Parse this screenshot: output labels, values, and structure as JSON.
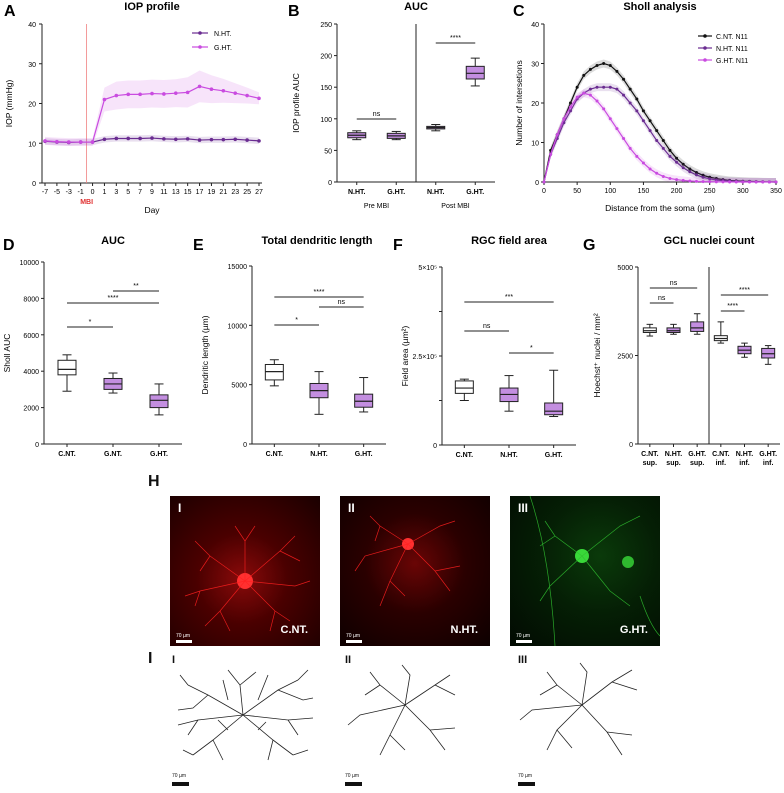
{
  "panel_letters": {
    "A": "A",
    "B": "B",
    "C": "C",
    "D": "D",
    "E": "E",
    "F": "F",
    "G": "G",
    "H": "H",
    "I": "I"
  },
  "chart_data": [
    {
      "id": "A",
      "type": "line",
      "title": "IOP profile",
      "xlabel": "Day",
      "ylabel": "IOP (mmHg)",
      "x_ticks": [
        "-7",
        "-5",
        "-3",
        "-1",
        "0",
        "1",
        "3",
        "5",
        "7",
        "9",
        "11",
        "13",
        "15",
        "17",
        "19",
        "21",
        "23",
        "25",
        "27"
      ],
      "ylim": [
        0,
        40
      ],
      "y_ticks": [
        0,
        10,
        20,
        30,
        40
      ],
      "event_label": "MBI",
      "event_at": "0",
      "series": [
        {
          "name": "N.HT.",
          "color": "#6a2c91",
          "values": [
            10.5,
            10.3,
            10.2,
            10.3,
            10.3,
            11.0,
            11.2,
            11.2,
            11.2,
            11.3,
            11.1,
            11.0,
            11.1,
            10.8,
            10.9,
            10.9,
            11.0,
            10.8,
            10.6
          ],
          "band": [
            0.8,
            0.8,
            0.8,
            0.8,
            0.8,
            0.8,
            0.8,
            0.8,
            0.8,
            0.8,
            0.8,
            0.8,
            0.8,
            0.8,
            0.8,
            0.8,
            0.8,
            0.8,
            0.8
          ]
        },
        {
          "name": "G.HT.",
          "color": "#c94be0",
          "values": [
            10.6,
            10.4,
            10.3,
            10.3,
            10.3,
            21.0,
            22.0,
            22.3,
            22.3,
            22.5,
            22.4,
            22.6,
            22.8,
            24.3,
            23.6,
            23.2,
            22.6,
            22.0,
            21.3
          ],
          "band": [
            1.0,
            1.0,
            1.0,
            1.0,
            1.0,
            3.0,
            3.5,
            3.5,
            3.5,
            3.5,
            3.5,
            3.5,
            3.8,
            4.0,
            3.5,
            3.0,
            2.5,
            2.0,
            1.5
          ]
        }
      ],
      "legend_position": "top-right"
    },
    {
      "id": "B",
      "type": "box",
      "title": "AUC",
      "ylabel": "IOP profile AUC",
      "ylim": [
        0,
        250
      ],
      "y_ticks": [
        0,
        50,
        100,
        150,
        200,
        250
      ],
      "groups": [
        {
          "label": "N.HT.",
          "min": 67,
          "q1": 70,
          "median": 74,
          "q3": 78,
          "max": 81,
          "fill": "#c38ee0"
        },
        {
          "label": "G.HT.",
          "min": 67,
          "q1": 69,
          "median": 73,
          "q3": 77,
          "max": 80,
          "fill": "#c38ee0"
        },
        {
          "label": "N.HT.",
          "min": 81,
          "q1": 84,
          "median": 86,
          "q3": 88,
          "max": 91,
          "fill": "#c38ee0"
        },
        {
          "label": "G.HT.",
          "min": 152,
          "q1": 163,
          "median": 172,
          "q3": 183,
          "max": 196,
          "fill": "#c38ee0"
        }
      ],
      "sections": [
        "Pre MBI",
        "Post MBI"
      ],
      "significance": [
        {
          "text": "ns"
        },
        {
          "text": "****"
        }
      ]
    },
    {
      "id": "C",
      "type": "line",
      "title": "Sholl analysis",
      "xlabel": "Distance from the soma (µm)",
      "ylabel": "Number of intersetions",
      "xlim": [
        0,
        350
      ],
      "x_ticks": [
        0,
        50,
        100,
        150,
        200,
        250,
        300,
        350
      ],
      "ylim": [
        0,
        40
      ],
      "y_ticks": [
        0,
        10,
        20,
        30,
        40
      ],
      "x": [
        0,
        10,
        20,
        30,
        40,
        50,
        60,
        70,
        80,
        90,
        100,
        110,
        120,
        130,
        140,
        150,
        160,
        170,
        180,
        190,
        200,
        210,
        220,
        230,
        240,
        250,
        260,
        270,
        280,
        290,
        300,
        310,
        320,
        330,
        340,
        350
      ],
      "series": [
        {
          "name": "C.NT. N11",
          "color": "#111111",
          "values": [
            0,
            8,
            12,
            16,
            20,
            24,
            27,
            28.5,
            29.5,
            30,
            29.5,
            28,
            26,
            23.5,
            21,
            18,
            15.5,
            13,
            10.5,
            8,
            6,
            4.5,
            3.3,
            2.4,
            1.7,
            1.2,
            0.9,
            0.6,
            0.4,
            0.3,
            0.2,
            0.15,
            0.1,
            0.05,
            0.02,
            0
          ]
        },
        {
          "name": "N.HT. N11",
          "color": "#6a2c91",
          "values": [
            0,
            7,
            11,
            15,
            18,
            21,
            22.5,
            23.5,
            24,
            24,
            24,
            23.5,
            22,
            20,
            18,
            15.5,
            13,
            10.5,
            8.5,
            6.5,
            5,
            3.6,
            2.6,
            1.8,
            1.2,
            0.8,
            0.5,
            0.35,
            0.25,
            0.15,
            0.1,
            0.06,
            0.04,
            0.02,
            0.01,
            0
          ]
        },
        {
          "name": "G.HT. N11",
          "color": "#c94be0",
          "values": [
            0,
            7,
            12,
            16,
            19,
            21.5,
            22.5,
            22,
            20.5,
            18.5,
            16,
            13.5,
            11,
            8.5,
            6.5,
            4.8,
            3.3,
            2.2,
            1.4,
            0.9,
            0.6,
            0.4,
            0.25,
            0.15,
            0.1,
            0.06,
            0.04,
            0.02,
            0.01,
            0,
            0,
            0,
            0,
            0,
            0,
            0
          ]
        }
      ],
      "legend_position": "top-right"
    },
    {
      "id": "D",
      "type": "box",
      "title": "AUC",
      "ylabel": "Sholl AUC",
      "ylim": [
        0,
        10000
      ],
      "y_ticks": [
        0,
        2000,
        4000,
        6000,
        8000,
        10000
      ],
      "groups": [
        {
          "label": "C.NT.",
          "min": 2900,
          "q1": 3800,
          "median": 4100,
          "q3": 4600,
          "max": 4900,
          "fill": "#ffffff"
        },
        {
          "label": "G.NT.",
          "min": 2800,
          "q1": 3000,
          "median": 3300,
          "q3": 3600,
          "max": 3900,
          "fill": "#c38ee0"
        },
        {
          "label": "G.HT.",
          "min": 1600,
          "q1": 2000,
          "median": 2400,
          "q3": 2700,
          "max": 3300,
          "fill": "#c38ee0"
        }
      ],
      "significance": [
        {
          "text": "*"
        },
        {
          "text": "**"
        },
        {
          "text": "****"
        }
      ]
    },
    {
      "id": "E",
      "type": "box",
      "title": "Total dendritic length",
      "ylabel": "Dendritic length (µm)",
      "ylim": [
        0,
        15000
      ],
      "y_ticks": [
        0,
        5000,
        10000,
        15000
      ],
      "groups": [
        {
          "label": "C.NT.",
          "min": 4900,
          "q1": 5400,
          "median": 6100,
          "q3": 6700,
          "max": 7100,
          "fill": "#ffffff"
        },
        {
          "label": "N.HT.",
          "min": 2500,
          "q1": 3900,
          "median": 4500,
          "q3": 5100,
          "max": 6100,
          "fill": "#c38ee0"
        },
        {
          "label": "G.HT.",
          "min": 2700,
          "q1": 3100,
          "median": 3600,
          "q3": 4200,
          "max": 5600,
          "fill": "#c38ee0"
        }
      ],
      "significance": [
        {
          "text": "*"
        },
        {
          "text": "ns"
        },
        {
          "text": "****"
        }
      ]
    },
    {
      "id": "F",
      "type": "box",
      "title": "RGC field area",
      "ylabel": "Field area (µm²)",
      "ylim": [
        0,
        500000
      ],
      "y_ticks": [
        "0",
        "",
        "2.5×10⁵",
        "",
        "5×10⁵"
      ],
      "groups": [
        {
          "label": "C.NT.",
          "min": 125000,
          "q1": 145000,
          "median": 160000,
          "q3": 180000,
          "max": 185000,
          "fill": "#ffffff"
        },
        {
          "label": "N.HT.",
          "min": 95000,
          "q1": 122000,
          "median": 142000,
          "q3": 160000,
          "max": 195000,
          "fill": "#c38ee0"
        },
        {
          "label": "G.HT.",
          "min": 80000,
          "q1": 85000,
          "median": 95000,
          "q3": 118000,
          "max": 210000,
          "fill": "#c38ee0"
        }
      ],
      "significance": [
        {
          "text": "ns"
        },
        {
          "text": "*"
        },
        {
          "text": "***"
        }
      ]
    },
    {
      "id": "G",
      "type": "box",
      "title": "GCL nuclei count",
      "ylabel": "Hoechst⁺ nuclei / mm²",
      "ylim": [
        0,
        5000
      ],
      "y_ticks": [
        0,
        2500,
        5000
      ],
      "groups": [
        {
          "label": "C.NT.",
          "label2": "sup.",
          "min": 3050,
          "q1": 3150,
          "median": 3200,
          "q3": 3280,
          "max": 3380,
          "fill": "#ffffff"
        },
        {
          "label": "N.HT.",
          "label2": "sup.",
          "min": 3100,
          "q1": 3150,
          "median": 3200,
          "q3": 3280,
          "max": 3380,
          "fill": "#c38ee0"
        },
        {
          "label": "G.HT.",
          "label2": "sup.",
          "min": 3100,
          "q1": 3180,
          "median": 3280,
          "q3": 3450,
          "max": 3680,
          "fill": "#c38ee0"
        },
        {
          "label": "C.NT.",
          "label2": "inf.",
          "min": 2850,
          "q1": 2920,
          "median": 2980,
          "q3": 3060,
          "max": 3450,
          "fill": "#ffffff"
        },
        {
          "label": "N.HT.",
          "label2": "inf.",
          "min": 2450,
          "q1": 2550,
          "median": 2650,
          "q3": 2760,
          "max": 2850,
          "fill": "#c38ee0"
        },
        {
          "label": "G.HT.",
          "label2": "inf.",
          "min": 2250,
          "q1": 2430,
          "median": 2550,
          "q3": 2700,
          "max": 2780,
          "fill": "#c38ee0"
        }
      ],
      "significance": [
        {
          "text": "ns"
        },
        {
          "text": "ns"
        },
        {
          "text": "****"
        },
        {
          "text": "****"
        }
      ]
    }
  ],
  "images": [
    {
      "roman": "I",
      "label": "C.NT.",
      "scale": "70 µm",
      "color": "red"
    },
    {
      "roman": "II",
      "label": "N.HT.",
      "scale": "70 µm",
      "color": "red"
    },
    {
      "roman": "III",
      "label": "G.HT.",
      "scale": "70 µm",
      "color": "green"
    }
  ],
  "tracings": [
    {
      "roman": "I",
      "scale": "70 µm"
    },
    {
      "roman": "II",
      "scale": "70 µm"
    },
    {
      "roman": "III",
      "scale": "70 µm"
    }
  ]
}
